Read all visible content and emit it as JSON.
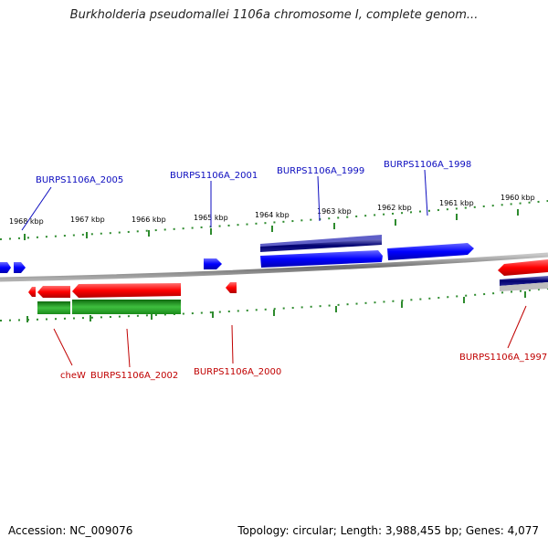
{
  "header": {
    "title": "Burkholderia pseudomallei 1106a chromosome I, complete genom..."
  },
  "footer": {
    "accession": "Accession: NC_009076",
    "summary": "Topology: circular; Length: 3,988,455 bp; Genes: 4,077"
  },
  "colors": {
    "forward_strand": "#0000ff",
    "reverse_strand": "#ff0000",
    "cds_feature": "#228b22",
    "tick": "#2e8b2e",
    "backbone": "#808080"
  },
  "scale": {
    "unit": "kbp",
    "tick_labels": [
      "1968 kbp",
      "1967 kbp",
      "1966 kbp",
      "1965 kbp",
      "1964 kbp",
      "1963 kbp",
      "1962 kbp",
      "1961 kbp",
      "1960 kbp"
    ]
  },
  "genes": {
    "forward": [
      {
        "locus": "BURPS1106A_2005"
      },
      {
        "locus": "BURPS1106A_2001"
      },
      {
        "locus": "BURPS1106A_1999"
      },
      {
        "locus": "BURPS1106A_1998"
      }
    ],
    "reverse": [
      {
        "locus": "cheW"
      },
      {
        "locus": "BURPS1106A_2002"
      },
      {
        "locus": "BURPS1106A_2000"
      },
      {
        "locus": "BURPS1106A_1997"
      }
    ]
  }
}
